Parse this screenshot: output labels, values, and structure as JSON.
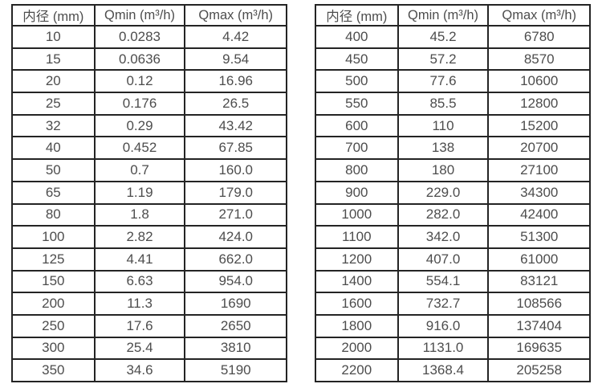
{
  "page": {
    "background_color": "#ffffff",
    "border_color": "#242424",
    "text_color": "#4d4d4d"
  },
  "chart_data": [
    {
      "type": "table",
      "title": "",
      "columns": [
        "内径 (mm)",
        "Qmin (m³/h)",
        "Qmax (m³/h)"
      ],
      "rows": [
        [
          "10",
          "0.0283",
          "4.42"
        ],
        [
          "15",
          "0.0636",
          "9.54"
        ],
        [
          "20",
          "0.12",
          "16.96"
        ],
        [
          "25",
          "0.176",
          "26.5"
        ],
        [
          "32",
          "0.29",
          "43.42"
        ],
        [
          "40",
          "0.452",
          "67.85"
        ],
        [
          "50",
          "0.7",
          "160.0"
        ],
        [
          "65",
          "1.19",
          "179.0"
        ],
        [
          "80",
          "1.8",
          "271.0"
        ],
        [
          "100",
          "2.82",
          "424.0"
        ],
        [
          "125",
          "4.41",
          "662.0"
        ],
        [
          "150",
          "6.63",
          "954.0"
        ],
        [
          "200",
          "11.3",
          "1690"
        ],
        [
          "250",
          "17.6",
          "2650"
        ],
        [
          "300",
          "25.4",
          "3810"
        ],
        [
          "350",
          "34.6",
          "5190"
        ]
      ]
    },
    {
      "type": "table",
      "title": "",
      "columns": [
        "内径 (mm)",
        "Qmin (m³/h)",
        "Qmax (m³/h)"
      ],
      "rows": [
        [
          "400",
          "45.2",
          "6780"
        ],
        [
          "450",
          "57.2",
          "8570"
        ],
        [
          "500",
          "77.6",
          "10600"
        ],
        [
          "550",
          "85.5",
          "12800"
        ],
        [
          "600",
          "110",
          "15200"
        ],
        [
          "700",
          "138",
          "20700"
        ],
        [
          "800",
          "180",
          "27100"
        ],
        [
          "900",
          "229.0",
          "34300"
        ],
        [
          "1000",
          "282.0",
          "42400"
        ],
        [
          "1100",
          "342.0",
          "51300"
        ],
        [
          "1200",
          "407.0",
          "61000"
        ],
        [
          "1400",
          "554.1",
          "83121"
        ],
        [
          "1600",
          "732.7",
          "108566"
        ],
        [
          "1800",
          "916.0",
          "137404"
        ],
        [
          "2000",
          "1131.0",
          "169635"
        ],
        [
          "2200",
          "1368.4",
          "205258"
        ]
      ]
    }
  ]
}
